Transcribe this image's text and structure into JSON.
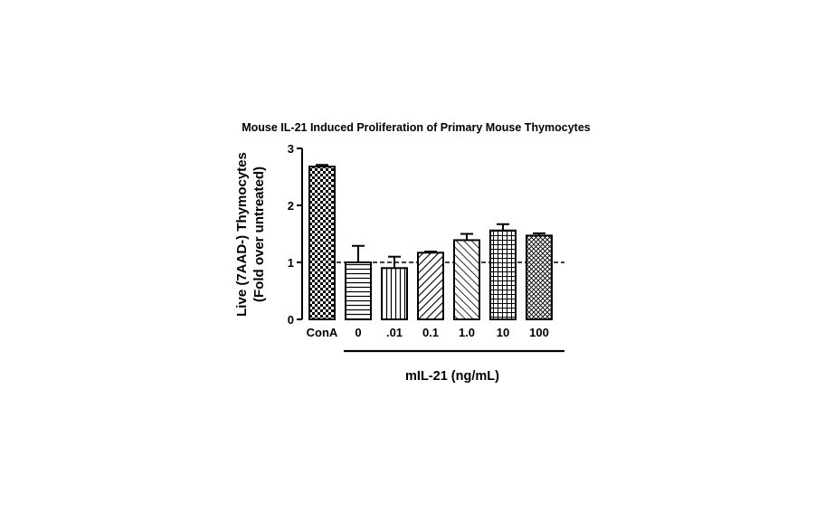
{
  "chart_data": {
    "type": "bar",
    "title": "Mouse IL-21 Induced Proliferation of Primary Mouse Thymocytes",
    "ylabel_lines": [
      "Live (7AAD-) Thymocytes",
      "(Fold over untreated)"
    ],
    "xlabel": "mIL-21 (ng/mL)",
    "categories": [
      "ConA",
      "0",
      ".01",
      "0.1",
      "1.0",
      "10",
      "100"
    ],
    "values": [
      2.68,
      1.0,
      0.9,
      1.17,
      1.39,
      1.56,
      1.47
    ],
    "errors": [
      0.03,
      0.29,
      0.2,
      0.02,
      0.11,
      0.11,
      0.04
    ],
    "patterns": [
      "checker",
      "hlines",
      "vlines",
      "diag-down",
      "diag-up",
      "grid",
      "crosshatch"
    ],
    "ylim": [
      0,
      3
    ],
    "yticks": [
      0,
      1,
      2,
      3
    ],
    "reference_line": 1,
    "grid": false,
    "legend": "none"
  }
}
